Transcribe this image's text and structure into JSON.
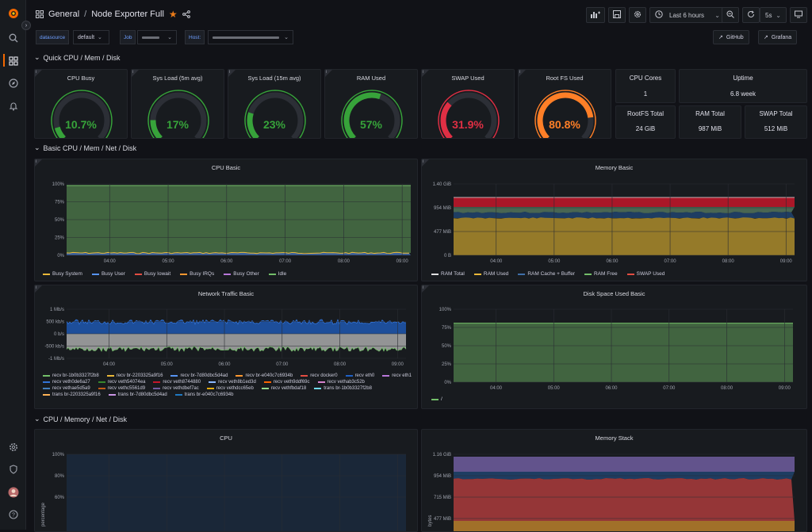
{
  "topbar": {
    "breadcrumb_folder": "General",
    "breadcrumb_sep": "/",
    "dashboard_title": "Node Exporter Full",
    "time_range": "Last 6 hours",
    "refresh": "5s"
  },
  "vars": {
    "datasource_label": "datasource",
    "datasource_value": "default",
    "job_label": "Job",
    "host_label": "Host:",
    "github_link": "GitHub",
    "grafana_link": "Grafana"
  },
  "rows": {
    "quick": "Quick CPU / Mem / Disk",
    "basic": "Basic CPU / Mem / Net / Disk",
    "cpu_mem": "CPU / Memory / Net / Disk"
  },
  "gauges": [
    {
      "title": "CPU Busy",
      "value": "10.7%",
      "pct": 10.7,
      "color": "#37a33a"
    },
    {
      "title": "Sys Load (5m avg)",
      "value": "17%",
      "pct": 17,
      "color": "#37a33a"
    },
    {
      "title": "Sys Load (15m avg)",
      "value": "23%",
      "pct": 23,
      "color": "#37a33a"
    },
    {
      "title": "RAM Used",
      "value": "57%",
      "pct": 57,
      "color": "#37a33a"
    },
    {
      "title": "SWAP Used",
      "value": "31.9%",
      "pct": 31.9,
      "color": "#e02f44"
    },
    {
      "title": "Root FS Used",
      "value": "80.8%",
      "pct": 80.8,
      "color": "#ff7f27"
    }
  ],
  "stats": {
    "cpu_cores_title": "CPU Cores",
    "cpu_cores_value": "1",
    "uptime_title": "Uptime",
    "uptime_value": "6.8 week",
    "rootfs_total_title": "RootFS Total",
    "rootfs_total_value": "24 GiB",
    "ram_total_title": "RAM Total",
    "ram_total_value": "987 MiB",
    "swap_total_title": "SWAP Total",
    "swap_total_value": "512 MiB"
  },
  "panels": {
    "cpu_basic": "CPU Basic",
    "memory_basic": "Memory Basic",
    "network_basic": "Network Traffic Basic",
    "disk_basic": "Disk Space Used Basic",
    "cpu": "CPU",
    "memory_stack": "Memory Stack"
  },
  "time_ticks": [
    "04:00",
    "05:00",
    "06:00",
    "07:00",
    "08:00",
    "09:00"
  ],
  "cpu_basic_y": [
    "100%",
    "75%",
    "50%",
    "25%",
    "0%"
  ],
  "memory_basic_y": [
    "1.40 GiB",
    "954 MiB",
    "477 MiB",
    "0 B"
  ],
  "network_y": [
    "1 Mb/s",
    "500 kb/s",
    "0 b/s",
    "-500 kb/s",
    "-1 Mb/s"
  ],
  "disk_y": [
    "100%",
    "75%",
    "50%",
    "25%",
    "0%"
  ],
  "cpu_y": [
    "100%",
    "80%",
    "60%"
  ],
  "cpu_ylabel": "percentage",
  "memstack_y": [
    "1.16 GiB",
    "954 MiB",
    "715 MiB",
    "477 MiB"
  ],
  "memstack_ylabel": "bytes",
  "cpu_basic_legend": [
    {
      "name": "Busy System",
      "color": "#eab839"
    },
    {
      "name": "Busy User",
      "color": "#5794f2"
    },
    {
      "name": "Busy Iowait",
      "color": "#e24d42"
    },
    {
      "name": "Busy IRQs",
      "color": "#ff9830"
    },
    {
      "name": "Busy Other",
      "color": "#b877d9"
    },
    {
      "name": "Idle",
      "color": "#73bf69"
    }
  ],
  "memory_basic_legend": [
    {
      "name": "RAM Total",
      "color": "#e0e0e0"
    },
    {
      "name": "RAM Used",
      "color": "#eab839"
    },
    {
      "name": "RAM Cache + Buffer",
      "color": "#3f6fa8"
    },
    {
      "name": "RAM Free",
      "color": "#73bf69"
    },
    {
      "name": "SWAP Used",
      "color": "#e24d42"
    }
  ],
  "network_legend": [
    {
      "name": "recv br-1b0b3327f2b8",
      "color": "#73bf69"
    },
    {
      "name": "recv br-2203325a9f16",
      "color": "#eab839"
    },
    {
      "name": "recv br-7d80dbc5d4ad",
      "color": "#5794f2"
    },
    {
      "name": "recv br-e040c7c6934b",
      "color": "#ff9830"
    },
    {
      "name": "recv docker0",
      "color": "#e24d42"
    },
    {
      "name": "recv eth0",
      "color": "#1f60c4"
    },
    {
      "name": "recv eth1",
      "color": "#b877d9"
    },
    {
      "name": "recv veth0de6a27",
      "color": "#3274d9"
    },
    {
      "name": "recv veth54074ea",
      "color": "#37872d"
    },
    {
      "name": "recv veth8744880",
      "color": "#c4162a"
    },
    {
      "name": "recv veth8b1ed3d",
      "color": "#8ab8ff"
    },
    {
      "name": "recv veth9ddf69c",
      "color": "#fa6400"
    },
    {
      "name": "recv vethab3c52b",
      "color": "#d683ce"
    },
    {
      "name": "recv vethae5d5a9",
      "color": "#447ebc"
    },
    {
      "name": "recv vethc5561d9",
      "color": "#c15c17"
    },
    {
      "name": "recv vethdbef7ac",
      "color": "#705da0"
    },
    {
      "name": "recv vethdcc65eb",
      "color": "#e5ac0e"
    },
    {
      "name": "recv vethfbdaf18",
      "color": "#96d98d"
    },
    {
      "name": "trans br-1b0b3327f2b8",
      "color": "#70dbed"
    },
    {
      "name": "trans br-2203325a9f16",
      "color": "#ffb357"
    },
    {
      "name": "trans br-7d80dbc5d4ad",
      "color": "#ca95e5"
    },
    {
      "name": "trans br-e040c7c6934b",
      "color": "#1f78c1"
    }
  ],
  "disk_legend": [
    {
      "name": "/",
      "color": "#73bf69"
    }
  ]
}
